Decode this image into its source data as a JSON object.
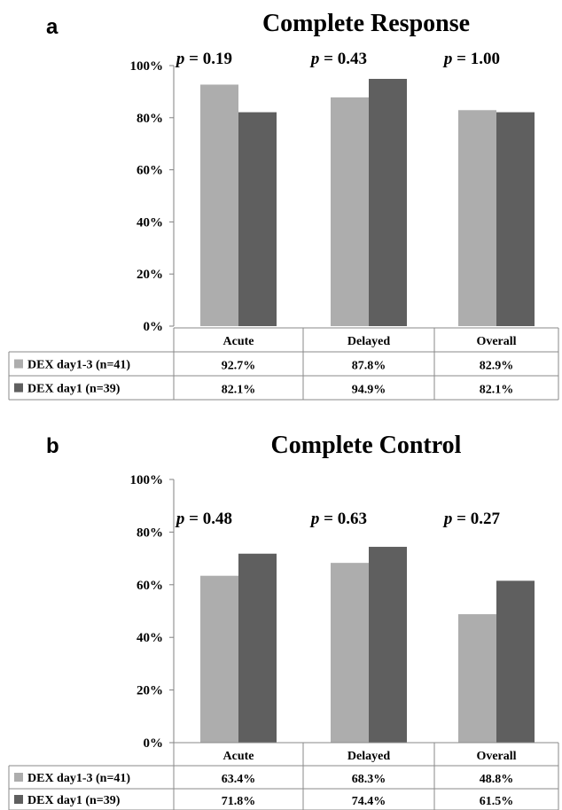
{
  "colors": {
    "series1": "#adadad",
    "series2": "#5f5f5f",
    "axis": "#808080"
  },
  "chart_data": [
    {
      "type": "bar",
      "panel": "a",
      "title": "Complete Response",
      "categories": [
        "Acute",
        "Delayed",
        "Overall"
      ],
      "p_values": [
        "0.19",
        "0.43",
        "1.00"
      ],
      "ylim": [
        0,
        100
      ],
      "yticks": [
        "0%",
        "20%",
        "40%",
        "60%",
        "80%",
        "100%"
      ],
      "series": [
        {
          "name": "DEX day1-3 (n=41)",
          "values": [
            92.7,
            87.8,
            82.9
          ],
          "labels": [
            "92.7%",
            "87.8%",
            "82.9%"
          ]
        },
        {
          "name": "DEX day1 (n=39)",
          "values": [
            82.1,
            94.9,
            82.1
          ],
          "labels": [
            "82.1%",
            "94.9%",
            "82.1%"
          ]
        }
      ]
    },
    {
      "type": "bar",
      "panel": "b",
      "title": "Complete Control",
      "categories": [
        "Acute",
        "Delayed",
        "Overall"
      ],
      "p_values": [
        "0.48",
        "0.63",
        "0.27"
      ],
      "ylim": [
        0,
        100
      ],
      "yticks": [
        "0%",
        "20%",
        "40%",
        "60%",
        "80%",
        "100%"
      ],
      "series": [
        {
          "name": "DEX day1-3 (n=41)",
          "values": [
            63.4,
            68.3,
            48.8
          ],
          "labels": [
            "63.4%",
            "68.3%",
            "48.8%"
          ]
        },
        {
          "name": "DEX day1 (n=39)",
          "values": [
            71.8,
            74.4,
            61.5
          ],
          "labels": [
            "71.8%",
            "74.4%",
            "61.5%"
          ]
        }
      ]
    }
  ]
}
